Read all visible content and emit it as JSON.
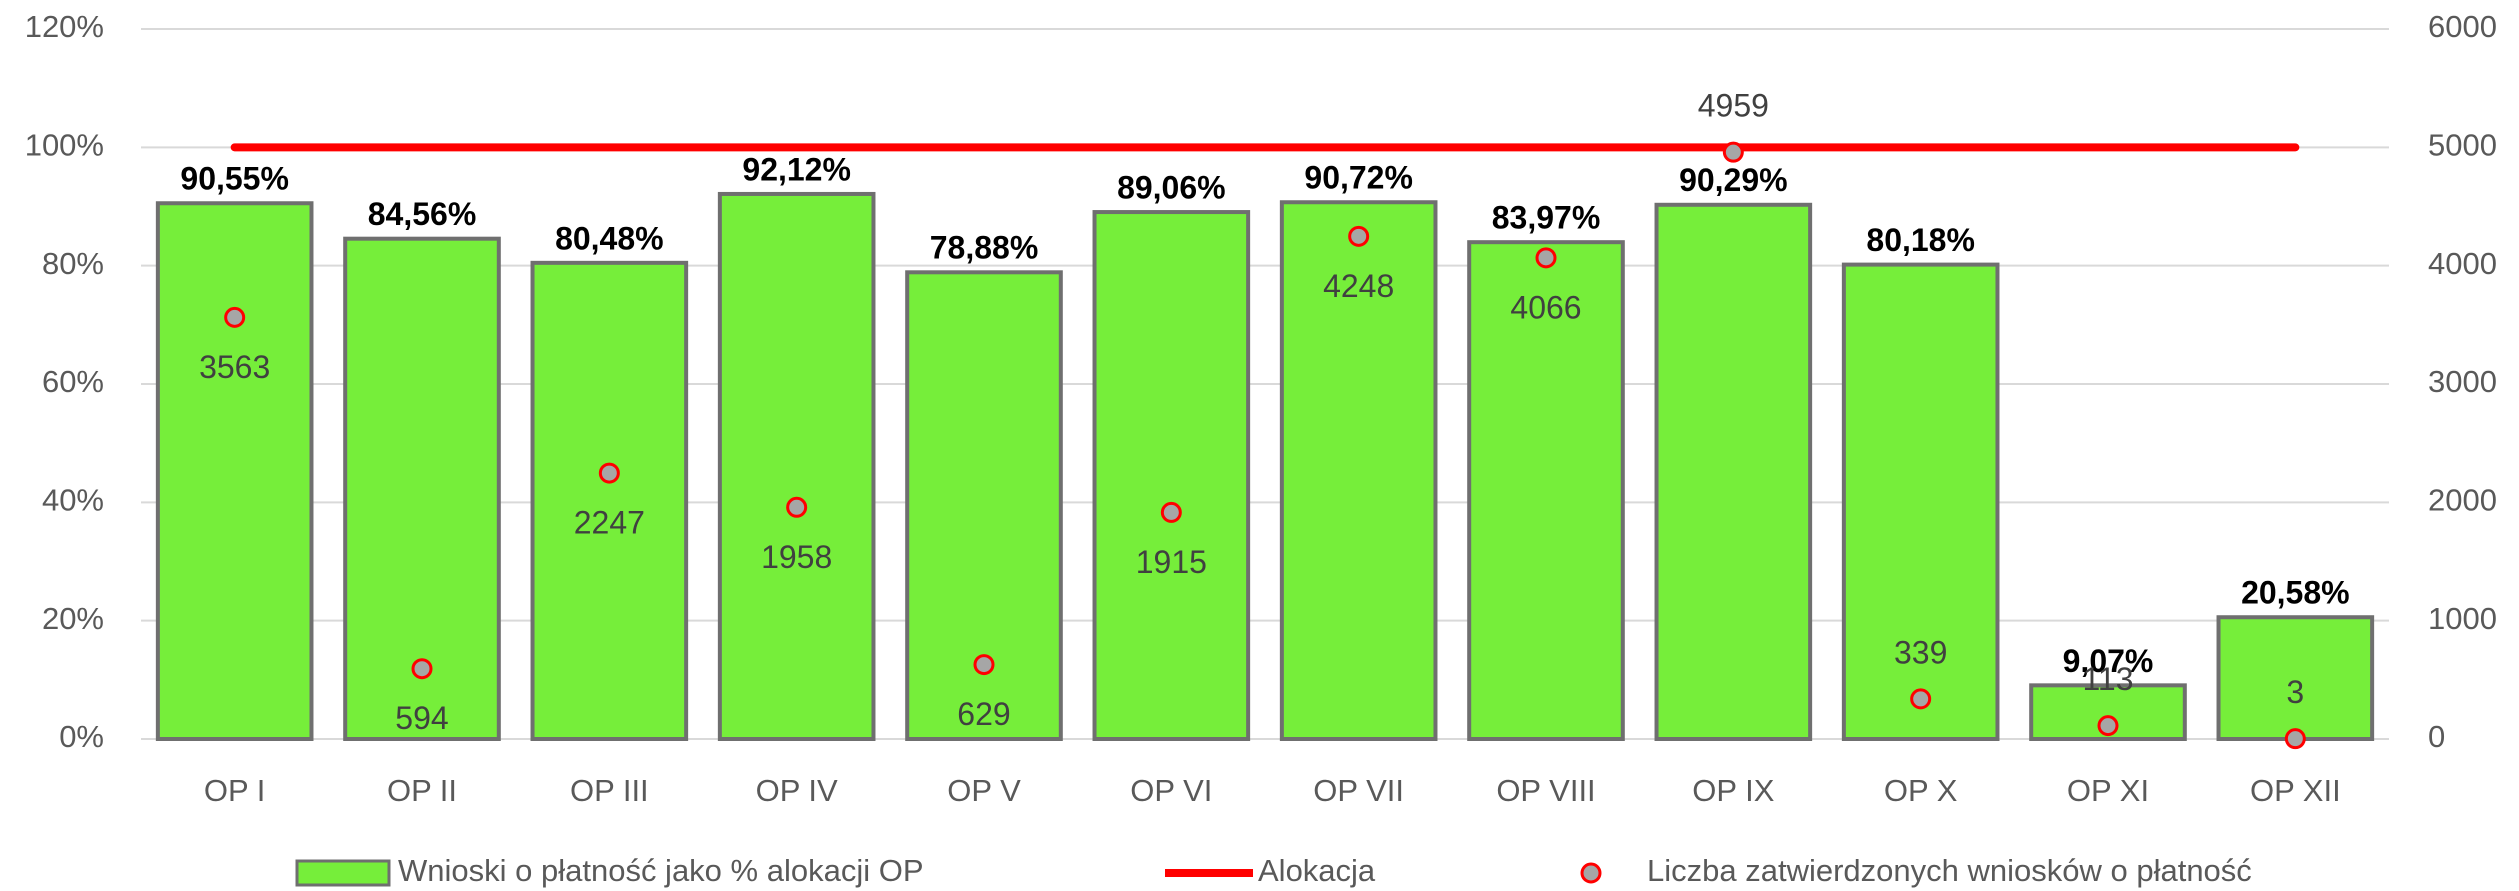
{
  "chart_data": {
    "type": "bar",
    "categories": [
      "OP I",
      "OP II",
      "OP III",
      "OP IV",
      "OP V",
      "OP VI",
      "OP VII",
      "OP VIII",
      "OP IX",
      "OP X",
      "OP XI",
      "OP XII"
    ],
    "series": [
      {
        "name": "Wnioski o płatność jako % alokacji OP",
        "type": "bar",
        "color": "#76ee3a",
        "values": [
          90.55,
          84.56,
          80.48,
          92.12,
          78.88,
          89.06,
          90.72,
          83.97,
          90.29,
          80.18,
          9.07,
          20.58
        ],
        "value_labels": [
          "90,55%",
          "84,56%",
          "80,48%",
          "92,12%",
          "78,88%",
          "89,06%",
          "90,72%",
          "83,97%",
          "90,29%",
          "80,18%",
          "9,07%",
          "20,58%"
        ]
      },
      {
        "name": "Alokacja",
        "type": "line",
        "color": "#ff0000",
        "values": [
          100,
          100,
          100,
          100,
          100,
          100,
          100,
          100,
          100,
          100,
          100,
          100
        ]
      },
      {
        "name": "Liczba zatwierdzonych wniosków o płatność",
        "type": "scatter",
        "axis": "y2",
        "color": "#a6a6a6",
        "edge_color": "#ff0000",
        "values": [
          3563,
          594,
          2247,
          1958,
          629,
          1915,
          4248,
          4066,
          4959,
          339,
          113,
          3
        ]
      }
    ],
    "ylim": [
      0,
      120
    ],
    "yticks": [
      {
        "value": 0,
        "label": "0%"
      },
      {
        "value": 20,
        "label": "20%"
      },
      {
        "value": 40,
        "label": "40%"
      },
      {
        "value": 60,
        "label": "60%"
      },
      {
        "value": 80,
        "label": "80%"
      },
      {
        "value": 100,
        "label": "100%"
      },
      {
        "value": 120,
        "label": "120%"
      }
    ],
    "y2lim": [
      0,
      6000
    ],
    "y2ticks": [
      0,
      1000,
      2000,
      3000,
      4000,
      5000,
      6000
    ],
    "grid": true,
    "legend": "bottom"
  }
}
